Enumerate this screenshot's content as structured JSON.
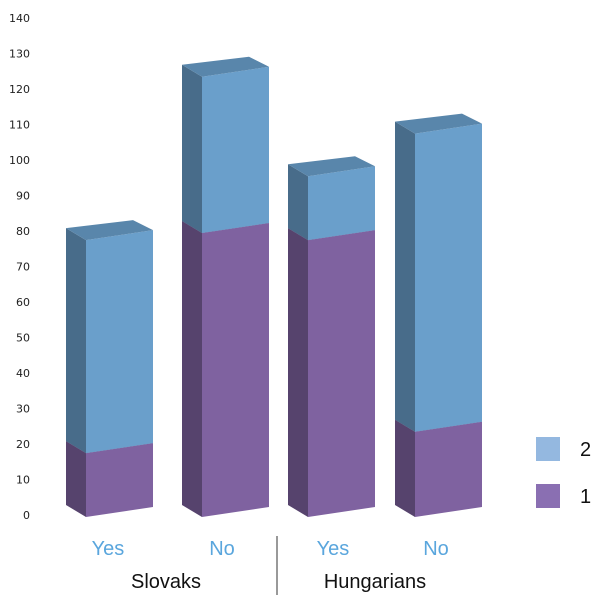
{
  "chart_data": {
    "type": "bar",
    "stacked": true,
    "three_d": true,
    "groups": [
      "Slovaks",
      "Hungarians"
    ],
    "categories": [
      "Yes",
      "No",
      "Yes",
      "No"
    ],
    "category_groups": [
      0,
      0,
      1,
      1
    ],
    "series": [
      {
        "name": "1",
        "values": [
          18,
          80,
          78,
          24
        ],
        "color": "#7f62a0"
      },
      {
        "name": "2",
        "values": [
          60,
          44,
          18,
          84
        ],
        "color": "#6a9fcb"
      }
    ],
    "ylim": [
      0,
      140
    ],
    "yticks": [
      0,
      10,
      20,
      30,
      40,
      50,
      60,
      70,
      80,
      90,
      100,
      110,
      120,
      130,
      140
    ],
    "grid": false,
    "legend_position": "right",
    "colors": {
      "category_label": "#5aa6dd",
      "legend_1": "#8a6fb2",
      "legend_2": "#94b8e0"
    }
  }
}
